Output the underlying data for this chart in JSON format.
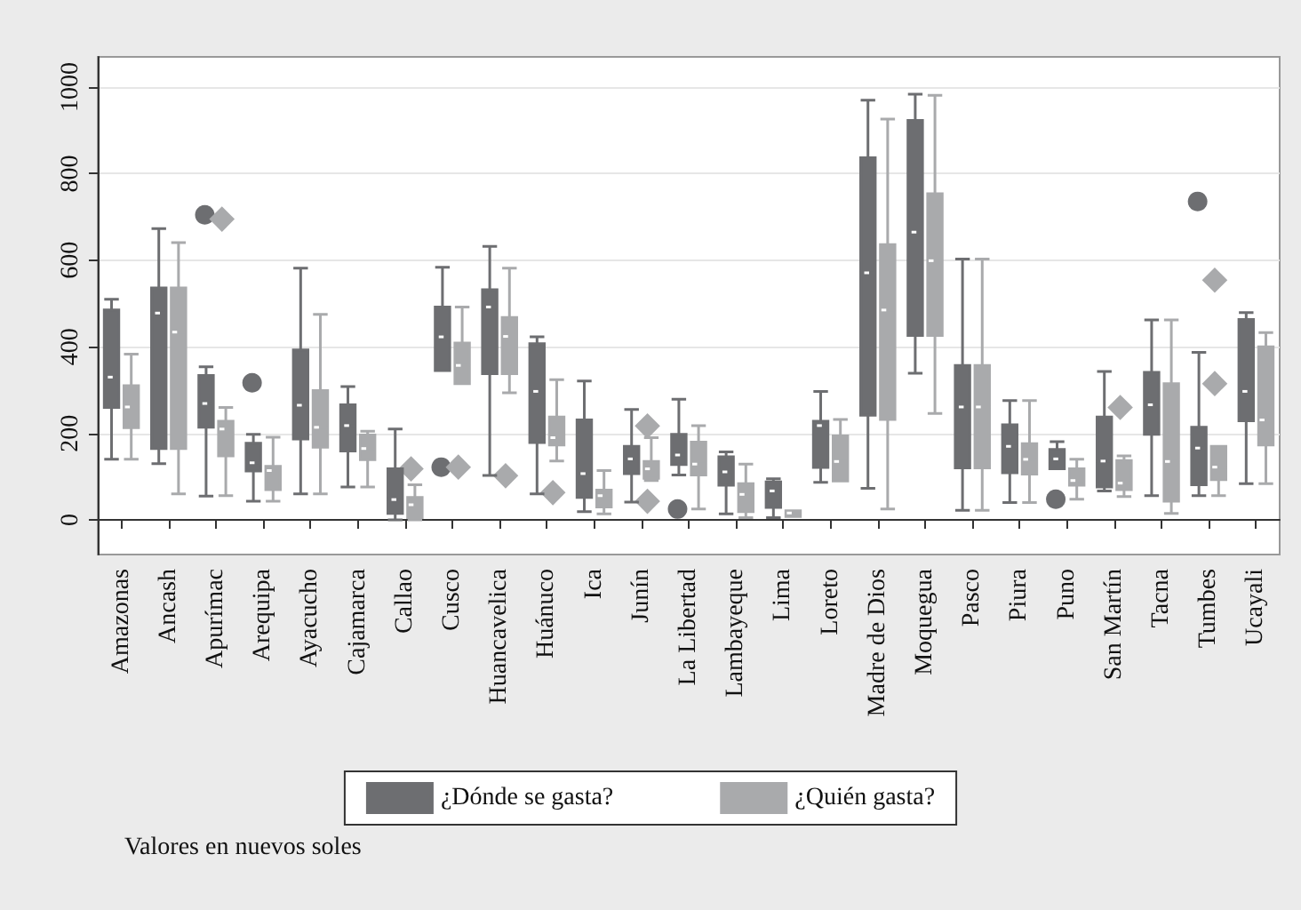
{
  "chart_data": {
    "type": "box",
    "categories": [
      "Amazonas",
      "Ancash",
      "Apurímac",
      "Arequipa",
      "Ayacucho",
      "Cajamarca",
      "Callao",
      "Cusco",
      "Huancavelica",
      "Huánuco",
      "Ica",
      "Junín",
      "La Libertad",
      "Lambayeque",
      "Lima",
      "Loreto",
      "Madre de Dios",
      "Moquegua",
      "Pasco",
      "Piura",
      "Puno",
      "San Martín",
      "Tacna",
      "Tumbes",
      "Ucayali"
    ],
    "series": [
      {
        "name": "¿Dónde se gasta?",
        "color": "#6d6e71",
        "marker": "circle",
        "boxes": [
          {
            "low": 140,
            "q1": 260,
            "median": 330,
            "q3": 485,
            "high": 510
          },
          {
            "low": 130,
            "q1": 165,
            "median": 478,
            "q3": 536,
            "high": 673
          },
          {
            "low": 55,
            "q1": 214,
            "median": 269,
            "q3": 334,
            "high": 354,
            "outliers": [
              705
            ]
          },
          {
            "low": 43,
            "q1": 113,
            "median": 132,
            "q3": 177,
            "high": 198,
            "outliers": [
              317
            ]
          },
          {
            "low": 60,
            "q1": 187,
            "median": 265,
            "q3": 393,
            "high": 582
          },
          {
            "low": 76,
            "q1": 159,
            "median": 218,
            "q3": 266,
            "high": 308
          },
          {
            "low": 0,
            "q1": 15,
            "median": 47,
            "q3": 118,
            "high": 210
          },
          {
            "low": 345,
            "q1": 345,
            "median": 423,
            "q3": 492,
            "high": 584,
            "outliers": [
              122
            ]
          },
          {
            "low": 103,
            "q1": 338,
            "median": 492,
            "q3": 532,
            "high": 632
          },
          {
            "low": 60,
            "q1": 179,
            "median": 297,
            "q3": 407,
            "high": 423
          },
          {
            "low": 19,
            "q1": 52,
            "median": 107,
            "q3": 231,
            "high": 321
          },
          {
            "low": 41,
            "q1": 107,
            "median": 141,
            "q3": 170,
            "high": 255
          },
          {
            "low": 104,
            "q1": 128,
            "median": 150,
            "q3": 198,
            "high": 279,
            "outliers": [
              25
            ]
          },
          {
            "low": 14,
            "q1": 80,
            "median": 111,
            "q3": 146,
            "high": 157
          },
          {
            "low": 5,
            "q1": 29,
            "median": 67,
            "q3": 88,
            "high": 95
          },
          {
            "low": 87,
            "q1": 121,
            "median": 218,
            "q3": 228,
            "high": 297
          },
          {
            "low": 73,
            "q1": 242,
            "median": 571,
            "q3": 837,
            "high": 970
          },
          {
            "low": 339,
            "q1": 426,
            "median": 665,
            "q3": 923,
            "high": 984
          },
          {
            "low": 22,
            "q1": 120,
            "median": 261,
            "q3": 357,
            "high": 603
          },
          {
            "low": 40,
            "q1": 109,
            "median": 170,
            "q3": 220,
            "high": 276
          },
          {
            "low": 118,
            "q1": 118,
            "median": 141,
            "q3": 163,
            "high": 181,
            "outliers": [
              48
            ]
          },
          {
            "low": 67,
            "q1": 76,
            "median": 136,
            "q3": 238,
            "high": 343
          },
          {
            "low": 56,
            "q1": 198,
            "median": 266,
            "q3": 341,
            "high": 462
          },
          {
            "low": 56,
            "q1": 81,
            "median": 166,
            "q3": 214,
            "high": 387,
            "outliers": [
              736
            ]
          },
          {
            "low": 84,
            "q1": 229,
            "median": 297,
            "q3": 463,
            "high": 479
          }
        ]
      },
      {
        "name": "¿Quién gasta?",
        "color": "#a9aaac",
        "marker": "diamond",
        "boxes": [
          {
            "low": 140,
            "q1": 213,
            "median": 261,
            "q3": 310,
            "high": 383
          },
          {
            "low": 60,
            "q1": 165,
            "median": 434,
            "q3": 536,
            "high": 641
          },
          {
            "low": 56,
            "q1": 148,
            "median": 210,
            "q3": 228,
            "high": 260,
            "outliers": [
              695
            ]
          },
          {
            "low": 43,
            "q1": 70,
            "median": 114,
            "q3": 124,
            "high": 191
          },
          {
            "low": 60,
            "q1": 168,
            "median": 214,
            "q3": 299,
            "high": 475
          },
          {
            "low": 76,
            "q1": 139,
            "median": 165,
            "q3": 196,
            "high": 205
          },
          {
            "low": 0,
            "q1": 5,
            "median": 35,
            "q3": 52,
            "high": 81,
            "outliers": [
              118
            ]
          },
          {
            "low": 315,
            "q1": 315,
            "median": 357,
            "q3": 409,
            "high": 492,
            "outliers": [
              122
            ]
          },
          {
            "low": 294,
            "q1": 338,
            "median": 424,
            "q3": 468,
            "high": 582,
            "outliers": [
              102
            ]
          },
          {
            "low": 136,
            "q1": 173,
            "median": 190,
            "q3": 238,
            "high": 324,
            "outliers": [
              63
            ]
          },
          {
            "low": 14,
            "q1": 30,
            "median": 56,
            "q3": 69,
            "high": 114
          },
          {
            "low": 91,
            "q1": 96,
            "median": 118,
            "q3": 135,
            "high": 190,
            "outliers": [
              217,
              43
            ]
          },
          {
            "low": 25,
            "q1": 104,
            "median": 129,
            "q3": 180,
            "high": 218
          },
          {
            "low": 5,
            "q1": 19,
            "median": 59,
            "q3": 84,
            "high": 129
          },
          {
            "low": 8,
            "q1": 8,
            "median": 16,
            "q3": 21,
            "high": 21
          },
          {
            "low": 90,
            "q1": 90,
            "median": 135,
            "q3": 194,
            "high": 232
          },
          {
            "low": 25,
            "q1": 232,
            "median": 485,
            "q3": 636,
            "high": 926
          },
          {
            "low": 246,
            "q1": 426,
            "median": 599,
            "q3": 754,
            "high": 981
          },
          {
            "low": 22,
            "q1": 120,
            "median": 261,
            "q3": 357,
            "high": 603
          },
          {
            "low": 40,
            "q1": 106,
            "median": 140,
            "q3": 176,
            "high": 276
          },
          {
            "low": 48,
            "q1": 80,
            "median": 91,
            "q3": 118,
            "high": 140
          },
          {
            "low": 54,
            "q1": 70,
            "median": 85,
            "q3": 137,
            "high": 148,
            "outliers": [
              260
            ]
          },
          {
            "low": 15,
            "q1": 43,
            "median": 135,
            "q3": 315,
            "high": 462
          },
          {
            "low": 56,
            "q1": 93,
            "median": 122,
            "q3": 170,
            "high": 170,
            "outliers": [
              554,
              315
            ]
          },
          {
            "low": 84,
            "q1": 173,
            "median": 231,
            "q3": 400,
            "high": 433
          }
        ]
      }
    ],
    "ylim": [
      -80,
      1070
    ],
    "yticks": [
      0,
      200,
      400,
      600,
      800,
      1000
    ],
    "grid": "y",
    "legend": "bottom",
    "annotations": [
      "Valores en nuevos soles"
    ]
  }
}
